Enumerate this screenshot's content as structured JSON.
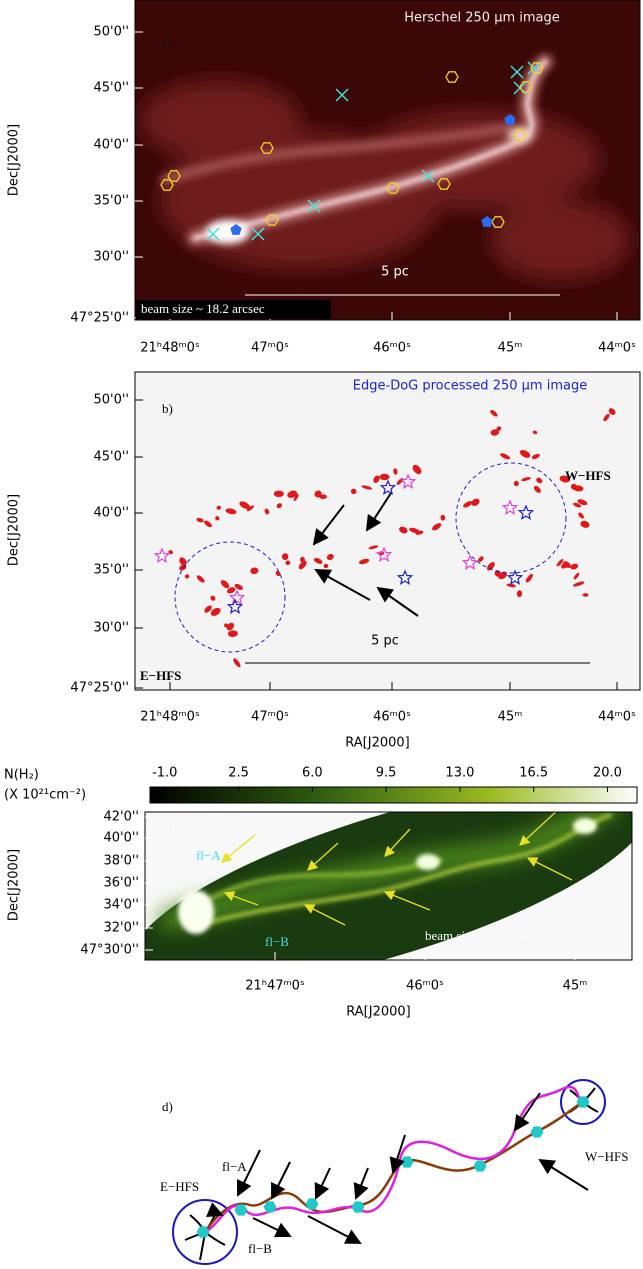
{
  "panels": [
    {
      "label": "a)",
      "title": "Herschel 250 μm image",
      "y_axis_label": "Dec[J2000]",
      "y_ticks": [
        "50'0''",
        "45'0''",
        "40'0''",
        "35'0''",
        "30'0''",
        "47°25'0''"
      ],
      "x_ticks": [
        "21ʰ48ᵐ0ˢ",
        "47ᵐ0ˢ",
        "46ᵐ0ˢ",
        "45ᵐ",
        "44ᵐ0ˢ"
      ],
      "scale_bar": "5 pc",
      "beam": "beam size ~ 18.2 arcsec"
    },
    {
      "label": "b)",
      "title": "Edge-DoG processed 250 μm image",
      "y_axis_label": "Dec[J2000]",
      "x_axis_label": "RA[J2000]",
      "y_ticks": [
        "50'0''",
        "45'0''",
        "40'0''",
        "35'0''",
        "30'0''",
        "47°25'0''"
      ],
      "x_ticks": [
        "21ʰ48ᵐ0ˢ",
        "47ᵐ0ˢ",
        "46ᵐ0ˢ",
        "45ᵐ",
        "44ᵐ0ˢ"
      ],
      "scale_bar": "5 pc",
      "hubs": [
        "W−HFS",
        "E−HFS"
      ]
    },
    {
      "label": "c)",
      "colorbar": {
        "label": "N(H₂)",
        "unit": "(X 10²¹cm⁻²)",
        "clim": [
          -1.7,
          21.4
        ],
        "ticks": [
          {
            "value": -1,
            "label": "-1.0"
          },
          {
            "value": 2.5,
            "label": "2.5"
          },
          {
            "value": 6,
            "label": "6.0"
          },
          {
            "value": 9.5,
            "label": "9.5"
          },
          {
            "value": 13,
            "label": "13.0"
          },
          {
            "value": 16.5,
            "label": "16.5"
          },
          {
            "value": 20,
            "label": "20.0"
          }
        ]
      },
      "y_axis_label": "Dec[J2000]",
      "x_axis_label": "RA[J2000]",
      "y_ticks": [
        "42'0''",
        "40'0''",
        "38'0''",
        "36'0''",
        "34'0''",
        "32'0''",
        "47°30'0''"
      ],
      "x_ticks": [
        "21ʰ47ᵐ0ˢ",
        "46ᵐ0ˢ",
        "45ᵐ"
      ],
      "filaments": [
        "fl−A",
        "fl−B"
      ],
      "beam": "beam size ~ 13.5 arcsec"
    },
    {
      "label": "d)",
      "fl_a": "fl−A",
      "e_hfs": "E−HFS",
      "fl_b": "fl−B",
      "w_hfs": "W−HFS"
    }
  ]
}
